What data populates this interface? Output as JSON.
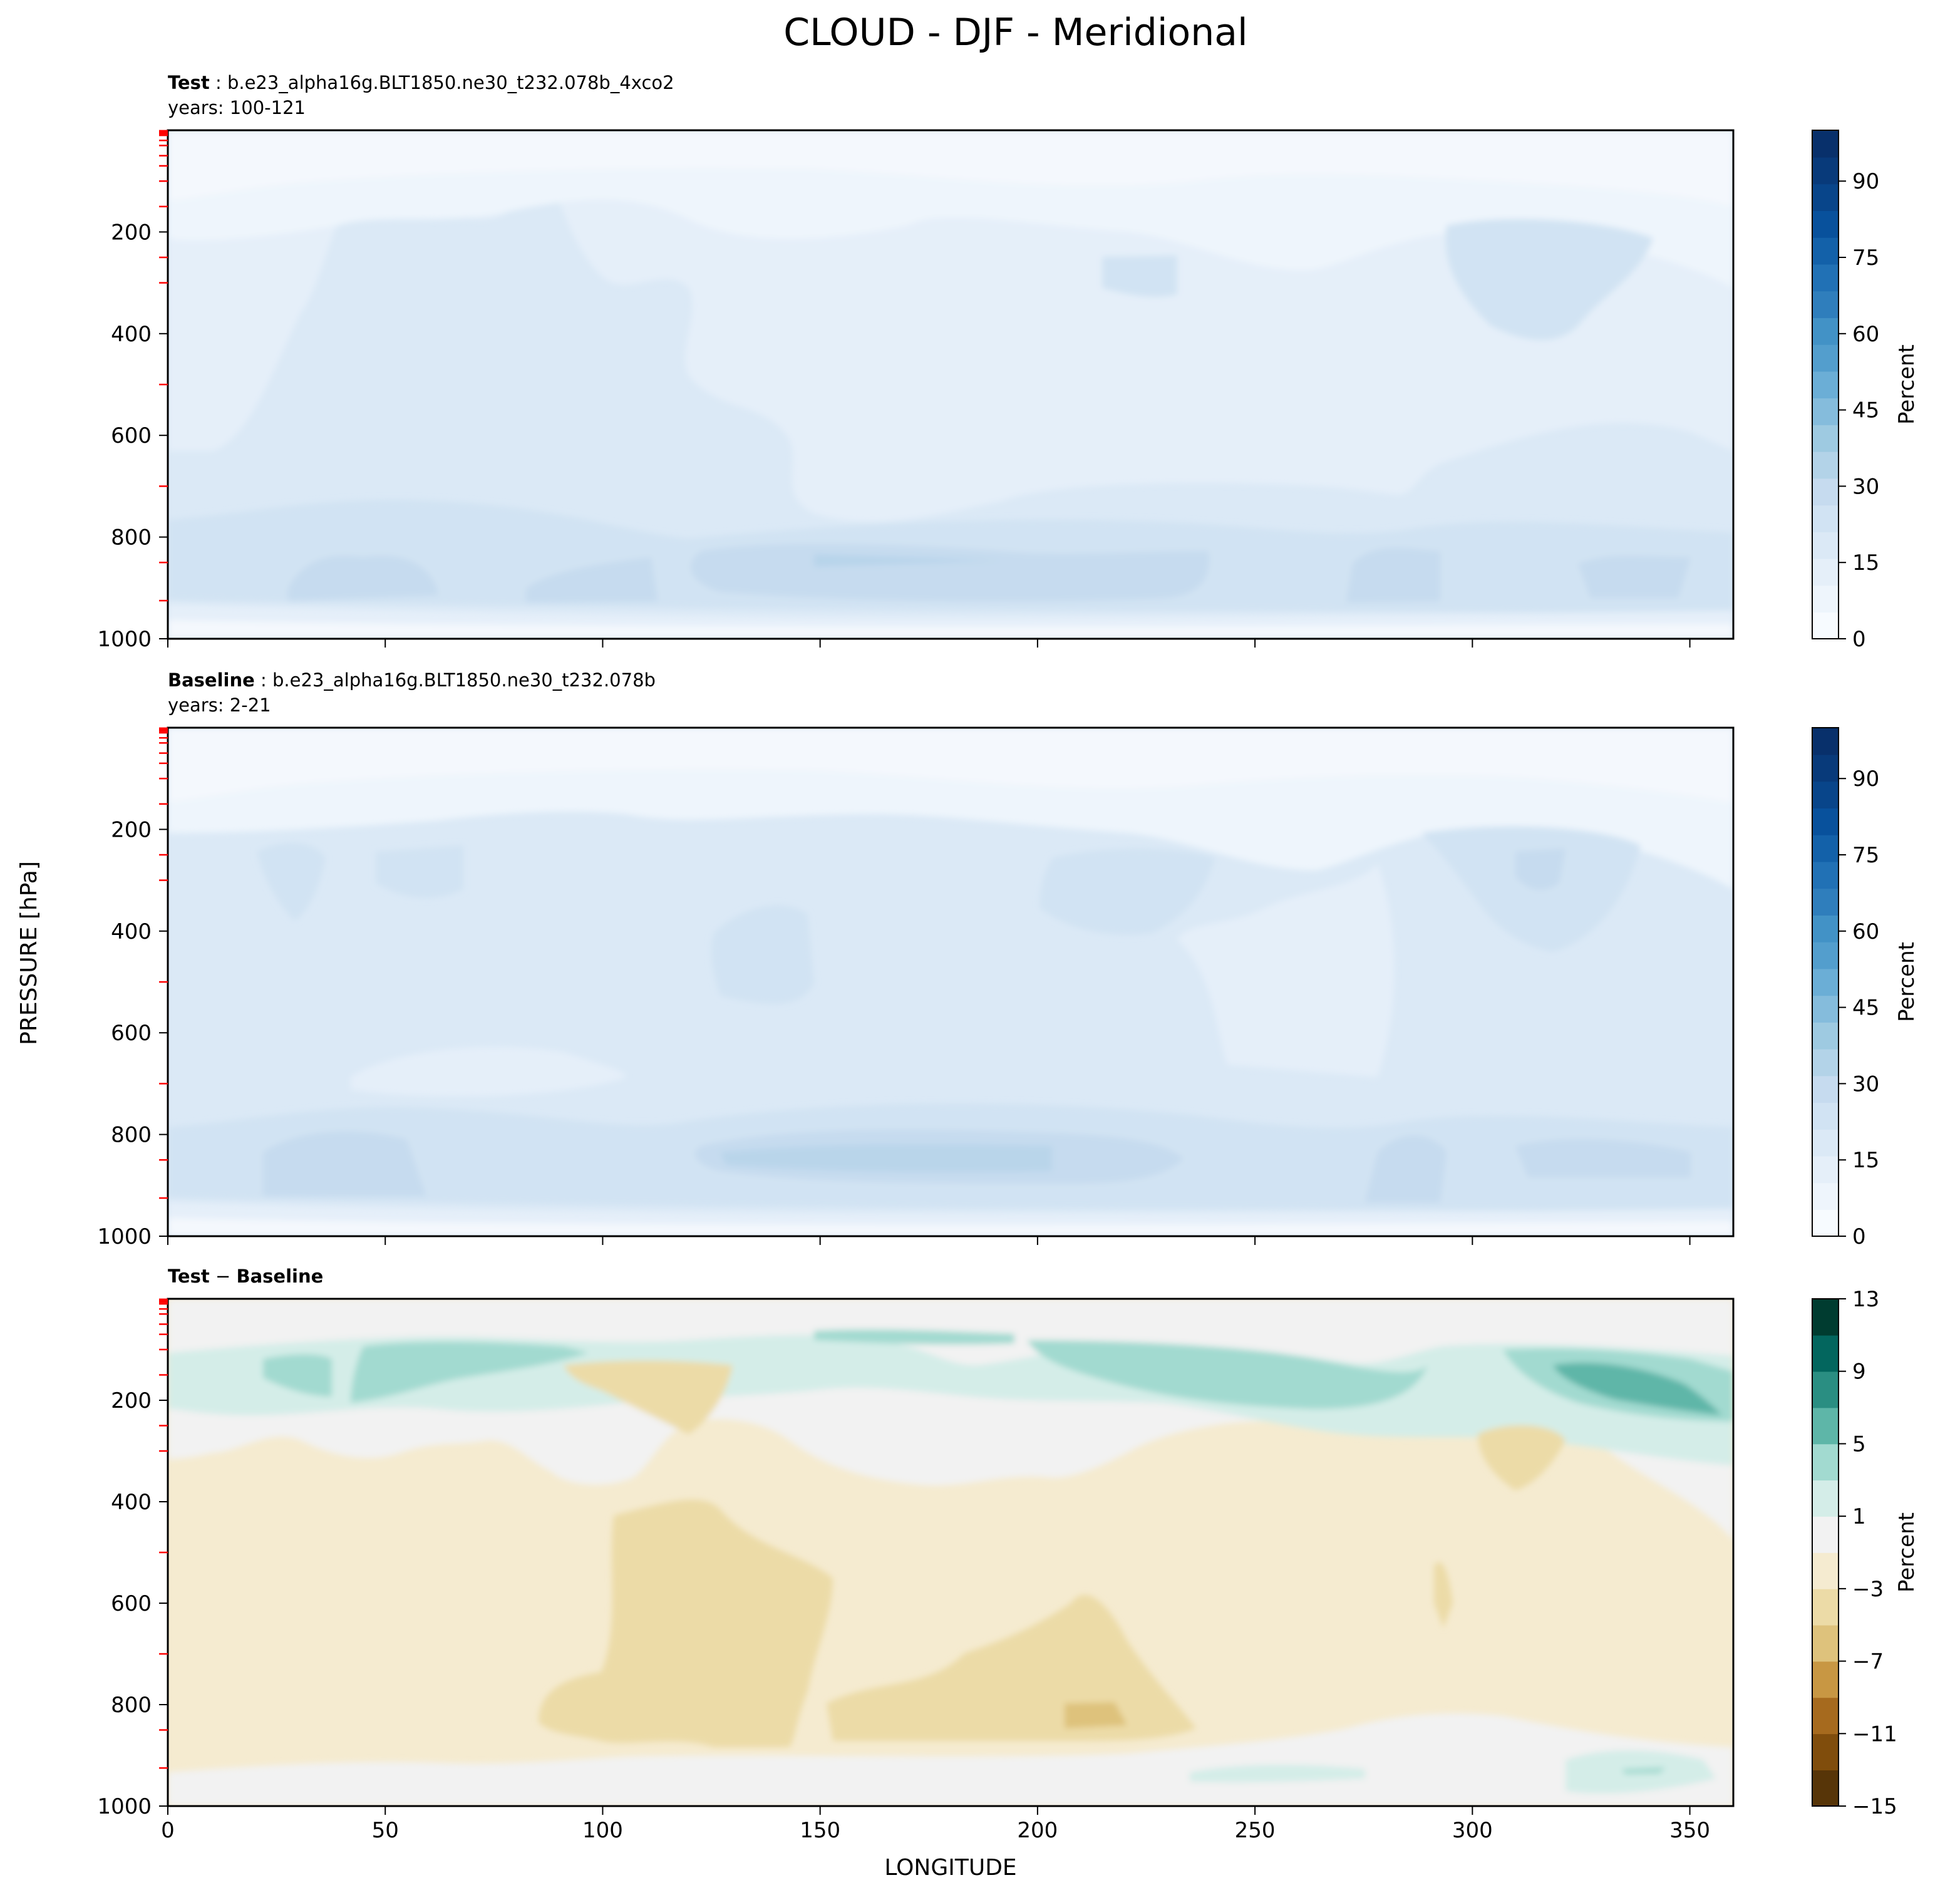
{
  "chart_data": {
    "type": "heatmap",
    "title": "CLOUD - DJF - Meridional",
    "xlabel": "LONGITUDE",
    "ylabel": "PRESSURE [hPa]",
    "xlim": [
      0,
      360
    ],
    "ylim": [
      1000,
      0
    ],
    "xticks": [
      "0",
      "50",
      "100",
      "150",
      "200",
      "250",
      "300",
      "350"
    ],
    "yticks": [
      "200",
      "400",
      "600",
      "800",
      "1000"
    ],
    "panels": [
      {
        "id": "test",
        "label_bold": "Test",
        "label_rest": " : b.e23_alpha16g.BLT1850.ne30_t232.078b_4xco2",
        "years": "years: 100-121",
        "colorbar": {
          "label": "Percent",
          "ticks": [
            "0",
            "15",
            "30",
            "45",
            "60",
            "75",
            "90"
          ],
          "range": [
            0,
            100
          ]
        },
        "field_summary": {
          "upper_above_150hPa": "0-5",
          "mid_troposphere": "10-20",
          "low_cloud_800_950hPa": "20-30",
          "max_low_cloud_lon": [
            160,
            190
          ]
        }
      },
      {
        "id": "baseline",
        "label_bold": "Baseline",
        "label_rest": " : b.e23_alpha16g.BLT1850.ne30_t232.078b",
        "years": "years: 2-21",
        "colorbar": {
          "label": "Percent",
          "ticks": [
            "0",
            "15",
            "30",
            "45",
            "60",
            "75",
            "90"
          ],
          "range": [
            0,
            100
          ]
        },
        "field_summary": {
          "upper_above_150hPa": "0-5",
          "mid_troposphere": "10-25",
          "low_cloud_800_950hPa": "20-35",
          "max_low_cloud_lon": [
            150,
            220
          ]
        }
      },
      {
        "id": "diff",
        "label_bold": "Test",
        "label_sep": " − ",
        "label_bold2": "Baseline",
        "colorbar": {
          "label": "Percent",
          "ticks": [
            "13",
            "9",
            "5",
            "1",
            "−3",
            "−7",
            "−11",
            "−15"
          ],
          "range": [
            -15,
            13
          ]
        },
        "field_summary": {
          "positive_band_hPa": [
            100,
            250
          ],
          "positive_max": 11,
          "negative_core_lon": [
            100,
            150
          ],
          "negative_min": -9
        }
      }
    ],
    "colors": {
      "blues": [
        "#f7fbff",
        "#eef5fc",
        "#e5eff9",
        "#dbe9f6",
        "#d1e3f3",
        "#c6dbef",
        "#b3d3e8",
        "#9ecae1",
        "#85bcdc",
        "#6baed6",
        "#539ecd",
        "#4292c6",
        "#2f7ebc",
        "#2171b5",
        "#1361a9",
        "#08519c",
        "#08458a",
        "#083a7a",
        "#08306b"
      ],
      "brbg": [
        "#573508",
        "#804d0c",
        "#a66a1e",
        "#c89743",
        "#dec27c",
        "#ecdba7",
        "#f5ebd0",
        "#f2f2f2",
        "#d4ede8",
        "#a2dad0",
        "#5eb6a8",
        "#2a8e82",
        "#03665e",
        "#003c30"
      ],
      "red_ticks": "#ff0000"
    }
  }
}
